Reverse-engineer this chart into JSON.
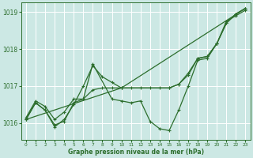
{
  "background_color": "#cce8e4",
  "grid_color": "#ffffff",
  "line_color": "#2d6e2d",
  "xlabel": "Graphe pression niveau de la mer (hPa)",
  "xlim": [
    -0.5,
    23.5
  ],
  "ylim": [
    1015.55,
    1019.25
  ],
  "yticks": [
    1016,
    1017,
    1018,
    1019
  ],
  "xticks": [
    0,
    1,
    2,
    3,
    4,
    5,
    6,
    7,
    8,
    9,
    10,
    11,
    12,
    13,
    14,
    15,
    16,
    17,
    18,
    19,
    20,
    21,
    22,
    23
  ],
  "series": [
    {
      "x": [
        0,
        1,
        2,
        3,
        4,
        5,
        6,
        7,
        8,
        9,
        10,
        11,
        12,
        13,
        14,
        15,
        16,
        17,
        18,
        19,
        20,
        21,
        22,
        23
      ],
      "y": [
        1016.15,
        1016.6,
        1016.45,
        1016.1,
        1016.3,
        1016.65,
        1016.65,
        1016.9,
        1016.95,
        1016.95,
        1016.95,
        1016.95,
        1016.95,
        1016.95,
        1016.95,
        1016.95,
        1017.05,
        1017.3,
        1017.75,
        1017.8,
        1018.15,
        1018.7,
        1018.95,
        1019.1
      ]
    },
    {
      "x": [
        0,
        1,
        2,
        3,
        4,
        5,
        6,
        7,
        8,
        9,
        10,
        15,
        16,
        17,
        18,
        19,
        20,
        21,
        22,
        23
      ],
      "y": [
        1016.1,
        1016.55,
        1016.35,
        1015.9,
        1016.1,
        1016.5,
        1017.0,
        1017.55,
        1017.25,
        1017.1,
        1016.95,
        1016.95,
        1017.05,
        1017.35,
        1017.75,
        1017.8,
        1018.15,
        1018.7,
        1018.95,
        1019.1
      ]
    },
    {
      "x": [
        0,
        1,
        2,
        3,
        4,
        5,
        6,
        7,
        9,
        10,
        11,
        12,
        13,
        14,
        15,
        16,
        17,
        18,
        19,
        20,
        21,
        22,
        23
      ],
      "y": [
        1016.1,
        1016.55,
        1016.35,
        1015.95,
        1016.05,
        1016.55,
        1016.65,
        1017.6,
        1016.65,
        1016.6,
        1016.55,
        1016.6,
        1016.05,
        1015.85,
        1015.8,
        1016.35,
        1017.0,
        1017.7,
        1017.75,
        1018.15,
        1018.75,
        1018.9,
        1019.05
      ]
    },
    {
      "x": [
        0,
        10,
        23
      ],
      "y": [
        1016.1,
        1016.95,
        1019.1
      ]
    }
  ]
}
